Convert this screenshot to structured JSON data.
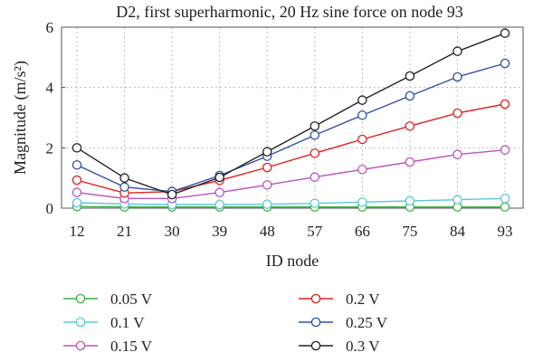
{
  "chart_data": {
    "type": "line",
    "title": "D2, first superharmonic, 20 Hz sine force on node 93",
    "xlabel": "ID node",
    "ylabel": "Magnitude (m/s²)",
    "categories": [
      "12",
      "21",
      "30",
      "39",
      "48",
      "57",
      "66",
      "75",
      "84",
      "93"
    ],
    "ylim": [
      0,
      6
    ],
    "yticks": [
      "0",
      "2",
      "4",
      "6"
    ],
    "grid": true,
    "legend_position": "bottom",
    "series": [
      {
        "name": "0.05 V",
        "color": "#3cb043",
        "values": [
          0.05,
          0.04,
          0.04,
          0.04,
          0.04,
          0.04,
          0.04,
          0.04,
          0.04,
          0.04
        ]
      },
      {
        "name": "0.1 V",
        "color": "#5bc8d4",
        "values": [
          0.18,
          0.14,
          0.12,
          0.12,
          0.13,
          0.16,
          0.2,
          0.24,
          0.28,
          0.32
        ]
      },
      {
        "name": "0.15 V",
        "color": "#c050c0",
        "values": [
          0.52,
          0.32,
          0.32,
          0.52,
          0.77,
          1.03,
          1.28,
          1.53,
          1.78,
          1.93
        ]
      },
      {
        "name": "0.2 V",
        "color": "#e02020",
        "values": [
          0.93,
          0.5,
          0.55,
          0.92,
          1.35,
          1.82,
          2.28,
          2.72,
          3.15,
          3.45
        ]
      },
      {
        "name": "0.25 V",
        "color": "#3050a8",
        "values": [
          1.43,
          0.7,
          0.55,
          1.08,
          1.72,
          2.42,
          3.08,
          3.72,
          4.35,
          4.8
        ]
      },
      {
        "name": "0.3 V",
        "color": "#222222",
        "values": [
          2.0,
          1.0,
          0.45,
          1.02,
          1.87,
          2.72,
          3.58,
          4.38,
          5.2,
          5.8
        ]
      }
    ]
  }
}
